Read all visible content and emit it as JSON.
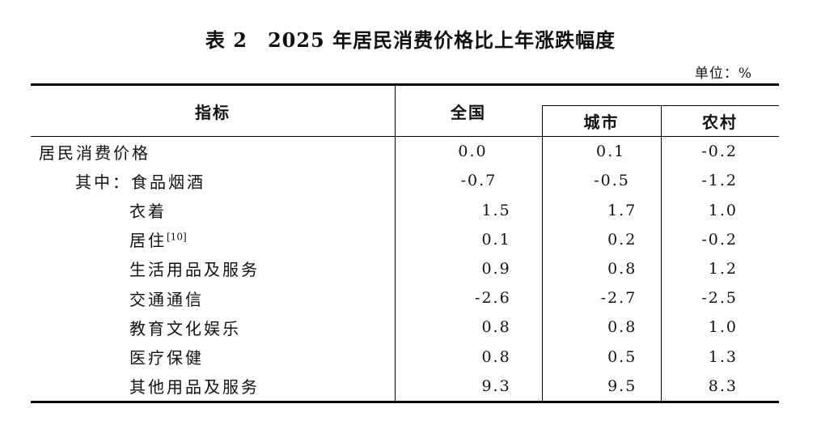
{
  "title": "表 2　2025 年居民消费价格比上年涨跌幅度",
  "unit_label": "单位：%",
  "table": {
    "col_headers": {
      "indicator": "指标",
      "national": "全国",
      "urban": "城市",
      "rural": "农村"
    },
    "rows": [
      {
        "label": "居民消费价格",
        "national": "0.0",
        "urban": "0.1",
        "rural": "-0.2"
      },
      {
        "label": "其中：食品烟酒",
        "national": "-0.7",
        "urban": "-0.5",
        "rural": "-1.2"
      },
      {
        "label": "衣着",
        "national": "1.5",
        "urban": "1.7",
        "rural": "1.0"
      },
      {
        "label": "居住",
        "sup": "[10]",
        "national": "0.1",
        "urban": "0.2",
        "rural": "-0.2"
      },
      {
        "label": "生活用品及服务",
        "national": "0.9",
        "urban": "0.8",
        "rural": "1.2"
      },
      {
        "label": "交通通信",
        "national": "-2.6",
        "urban": "-2.7",
        "rural": "-2.5"
      },
      {
        "label": "教育文化娱乐",
        "national": "0.8",
        "urban": "0.8",
        "rural": "1.0"
      },
      {
        "label": "医疗保健",
        "national": "0.8",
        "urban": "0.5",
        "rural": "1.3"
      },
      {
        "label": "其他用品及服务",
        "national": "9.3",
        "urban": "9.5",
        "rural": "8.3"
      }
    ]
  }
}
